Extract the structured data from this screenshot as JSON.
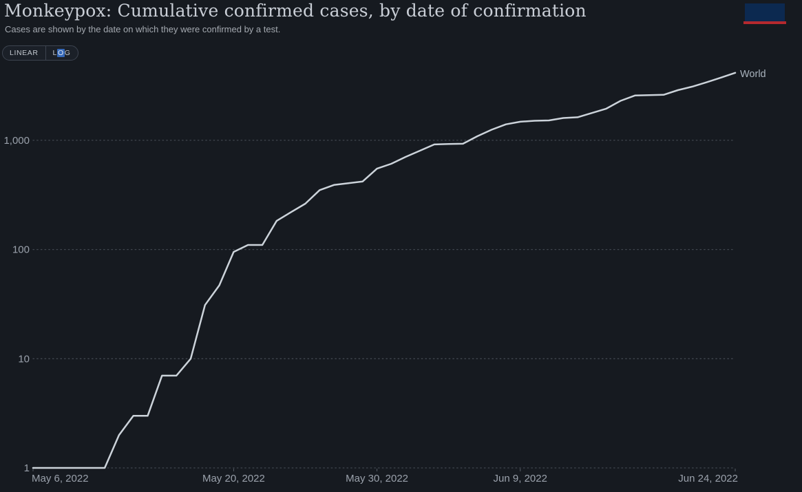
{
  "header": {
    "title": "Monkeypox: Cumulative confirmed cases, by date of confirmation",
    "subtitle": "Cases are shown by the date on which they were confirmed by a test."
  },
  "logo": {
    "box_color": "#0c2950",
    "bar_color": "#b5292e"
  },
  "toggle": {
    "linear_label": "LINEAR",
    "log_parts": {
      "pre": "L",
      "highlight": "O",
      "post": "G"
    },
    "active": "LOG",
    "highlight_color": "#3568b8"
  },
  "chart_data": {
    "type": "line",
    "title": "Monkeypox: Cumulative confirmed cases, by date of confirmation",
    "subtitle": "Cases are shown by the date on which they were confirmed by a test.",
    "yscale": "log",
    "grid": "dotted-horizontal",
    "legend_position": "line-end-label",
    "ylim": [
      1,
      4500
    ],
    "xrange": [
      "2022-05-06",
      "2022-06-24"
    ],
    "yticks": [
      {
        "value": 1,
        "label": "1"
      },
      {
        "value": 10,
        "label": "10"
      },
      {
        "value": 100,
        "label": "100"
      },
      {
        "value": 1000,
        "label": "1,000"
      }
    ],
    "xticks": [
      {
        "date": "2022-05-06",
        "label": "May 6, 2022"
      },
      {
        "date": "2022-05-20",
        "label": "May 20, 2022"
      },
      {
        "date": "2022-05-30",
        "label": "May 30, 2022"
      },
      {
        "date": "2022-06-09",
        "label": "Jun 9, 2022"
      },
      {
        "date": "2022-06-24",
        "label": "Jun 24, 2022"
      }
    ],
    "series": [
      {
        "name": "World",
        "color": "#ccd3da",
        "label_color": "#a9b3bd",
        "points": [
          [
            "2022-05-06",
            1
          ],
          [
            "2022-05-11",
            1
          ],
          [
            "2022-05-12",
            2
          ],
          [
            "2022-05-13",
            3
          ],
          [
            "2022-05-14",
            3
          ],
          [
            "2022-05-15",
            7
          ],
          [
            "2022-05-16",
            7
          ],
          [
            "2022-05-17",
            10
          ],
          [
            "2022-05-18",
            31
          ],
          [
            "2022-05-19",
            47
          ],
          [
            "2022-05-20",
            95
          ],
          [
            "2022-05-21",
            110
          ],
          [
            "2022-05-22",
            110
          ],
          [
            "2022-05-23",
            183
          ],
          [
            "2022-05-24",
            220
          ],
          [
            "2022-05-25",
            263
          ],
          [
            "2022-05-26",
            350
          ],
          [
            "2022-05-27",
            390
          ],
          [
            "2022-05-28",
            405
          ],
          [
            "2022-05-29",
            420
          ],
          [
            "2022-05-30",
            550
          ],
          [
            "2022-05-31",
            610
          ],
          [
            "2022-06-01",
            705
          ],
          [
            "2022-06-02",
            803
          ],
          [
            "2022-06-03",
            916
          ],
          [
            "2022-06-04",
            925
          ],
          [
            "2022-06-05",
            930
          ],
          [
            "2022-06-06",
            1090
          ],
          [
            "2022-06-07",
            1250
          ],
          [
            "2022-06-08",
            1400
          ],
          [
            "2022-06-09",
            1480
          ],
          [
            "2022-06-10",
            1510
          ],
          [
            "2022-06-11",
            1520
          ],
          [
            "2022-06-12",
            1600
          ],
          [
            "2022-06-13",
            1625
          ],
          [
            "2022-06-14",
            1780
          ],
          [
            "2022-06-15",
            1950
          ],
          [
            "2022-06-16",
            2300
          ],
          [
            "2022-06-17",
            2570
          ],
          [
            "2022-06-18",
            2590
          ],
          [
            "2022-06-19",
            2610
          ],
          [
            "2022-06-20",
            2880
          ],
          [
            "2022-06-21",
            3100
          ],
          [
            "2022-06-22",
            3400
          ],
          [
            "2022-06-23",
            3750
          ],
          [
            "2022-06-24",
            4150
          ]
        ]
      }
    ]
  },
  "colors": {
    "background": "#161a20",
    "title_text": "#c9ced6",
    "subtitle_text": "#a4a9b0",
    "axis_text": "#9aa1ab",
    "gridline": "#41474f",
    "tick": "#565d66"
  }
}
